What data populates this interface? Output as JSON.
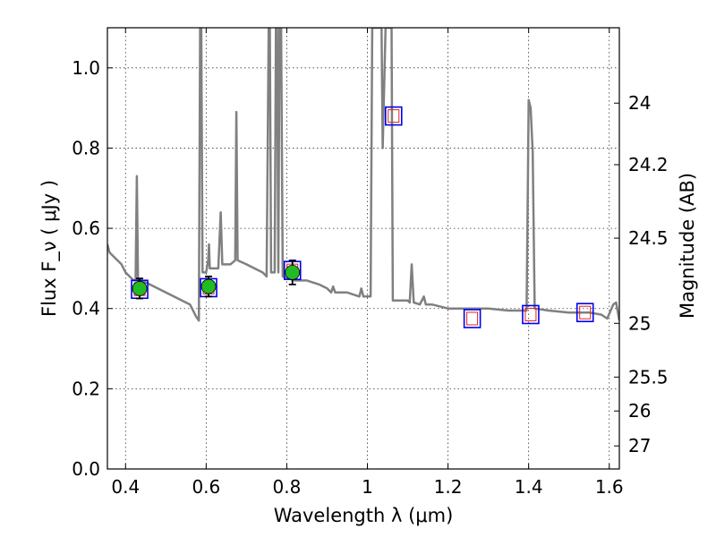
{
  "chart_data": {
    "type": "scatter",
    "xlabel": "Wavelength  λ (μm)",
    "ylabel": "Flux  F_ν  ( μJy )",
    "y2label": "Magnitude (AB)",
    "xlim": [
      0.355,
      1.625
    ],
    "ylim": [
      0.0,
      1.1
    ],
    "grid": true,
    "x_ticks": [
      "0.4",
      "0.6",
      "0.8",
      "1",
      "1.2",
      "1.4",
      "1.6"
    ],
    "x_tick_values": [
      0.4,
      0.6,
      0.8,
      1.0,
      1.2,
      1.4,
      1.6
    ],
    "y_ticks": [
      "0.0",
      "0.2",
      "0.4",
      "0.6",
      "0.8",
      "1.0"
    ],
    "y_tick_values": [
      0.0,
      0.2,
      0.4,
      0.6,
      0.8,
      1.0
    ],
    "mag_ticks": [
      "24",
      "24.2",
      "24.5",
      "25",
      "25.5",
      "26",
      "27"
    ],
    "mag_tick_values": [
      24,
      24.2,
      24.5,
      25,
      25.5,
      26,
      27
    ],
    "colors": {
      "spectrum": "#808080",
      "observed_fill": "#22bb22",
      "observed_edge": "#000000",
      "model_box": "#0000ee",
      "model_inner": "#dd2222",
      "errorbar": "#000000"
    },
    "spectrum": [
      [
        0.355,
        0.56
      ],
      [
        0.36,
        0.54
      ],
      [
        0.37,
        0.53
      ],
      [
        0.38,
        0.52
      ],
      [
        0.39,
        0.51
      ],
      [
        0.4,
        0.49
      ],
      [
        0.41,
        0.48
      ],
      [
        0.42,
        0.47
      ],
      [
        0.425,
        0.47
      ],
      [
        0.428,
        0.73
      ],
      [
        0.431,
        0.47
      ],
      [
        0.44,
        0.47
      ],
      [
        0.46,
        0.46
      ],
      [
        0.48,
        0.45
      ],
      [
        0.5,
        0.44
      ],
      [
        0.52,
        0.43
      ],
      [
        0.54,
        0.42
      ],
      [
        0.56,
        0.41
      ],
      [
        0.575,
        0.38
      ],
      [
        0.582,
        0.37
      ],
      [
        0.585,
        1.1
      ],
      [
        0.588,
        1.1
      ],
      [
        0.591,
        0.49
      ],
      [
        0.6,
        0.49
      ],
      [
        0.605,
        0.52
      ],
      [
        0.607,
        0.56
      ],
      [
        0.609,
        0.5
      ],
      [
        0.62,
        0.5
      ],
      [
        0.63,
        0.5
      ],
      [
        0.636,
        0.64
      ],
      [
        0.64,
        0.51
      ],
      [
        0.65,
        0.51
      ],
      [
        0.66,
        0.51
      ],
      [
        0.672,
        0.52
      ],
      [
        0.675,
        0.89
      ],
      [
        0.678,
        0.52
      ],
      [
        0.7,
        0.51
      ],
      [
        0.72,
        0.5
      ],
      [
        0.74,
        0.49
      ],
      [
        0.75,
        0.48
      ],
      [
        0.755,
        1.1
      ],
      [
        0.758,
        1.1
      ],
      [
        0.761,
        0.49
      ],
      [
        0.77,
        0.49
      ],
      [
        0.773,
        1.1
      ],
      [
        0.776,
        1.1
      ],
      [
        0.779,
        0.49
      ],
      [
        0.782,
        1.1
      ],
      [
        0.786,
        1.1
      ],
      [
        0.79,
        0.48
      ],
      [
        0.82,
        0.47
      ],
      [
        0.85,
        0.47
      ],
      [
        0.88,
        0.46
      ],
      [
        0.9,
        0.45
      ],
      [
        0.91,
        0.44
      ],
      [
        0.915,
        0.455
      ],
      [
        0.92,
        0.44
      ],
      [
        0.95,
        0.44
      ],
      [
        0.98,
        0.43
      ],
      [
        0.985,
        0.45
      ],
      [
        0.99,
        0.43
      ],
      [
        1.0,
        0.43
      ],
      [
        1.008,
        0.43
      ],
      [
        1.012,
        1.1
      ],
      [
        1.035,
        1.1
      ],
      [
        1.038,
        0.8
      ],
      [
        1.045,
        1.1
      ],
      [
        1.06,
        1.1
      ],
      [
        1.063,
        0.42
      ],
      [
        1.08,
        0.42
      ],
      [
        1.1,
        0.42
      ],
      [
        1.105,
        0.415
      ],
      [
        1.11,
        0.51
      ],
      [
        1.115,
        0.415
      ],
      [
        1.13,
        0.41
      ],
      [
        1.14,
        0.43
      ],
      [
        1.145,
        0.41
      ],
      [
        1.16,
        0.41
      ],
      [
        1.2,
        0.4
      ],
      [
        1.25,
        0.4
      ],
      [
        1.3,
        0.4
      ],
      [
        1.35,
        0.395
      ],
      [
        1.38,
        0.395
      ],
      [
        1.395,
        0.395
      ],
      [
        1.4,
        0.92
      ],
      [
        1.405,
        0.9
      ],
      [
        1.41,
        0.79
      ],
      [
        1.415,
        0.4
      ],
      [
        1.45,
        0.395
      ],
      [
        1.5,
        0.39
      ],
      [
        1.55,
        0.39
      ],
      [
        1.58,
        0.385
      ],
      [
        1.595,
        0.375
      ],
      [
        1.61,
        0.41
      ],
      [
        1.617,
        0.415
      ],
      [
        1.625,
        0.37
      ]
    ],
    "observed": [
      {
        "x": 0.435,
        "y": 0.45,
        "err": 0.025
      },
      {
        "x": 0.606,
        "y": 0.455,
        "err": 0.025
      },
      {
        "x": 0.814,
        "y": 0.49,
        "err": 0.03
      }
    ],
    "model": [
      {
        "x": 0.435,
        "y": 0.448
      },
      {
        "x": 0.606,
        "y": 0.452
      },
      {
        "x": 0.814,
        "y": 0.495
      },
      {
        "x": 1.065,
        "y": 0.88
      },
      {
        "x": 1.26,
        "y": 0.375
      },
      {
        "x": 1.405,
        "y": 0.385
      },
      {
        "x": 1.54,
        "y": 0.39
      }
    ]
  }
}
